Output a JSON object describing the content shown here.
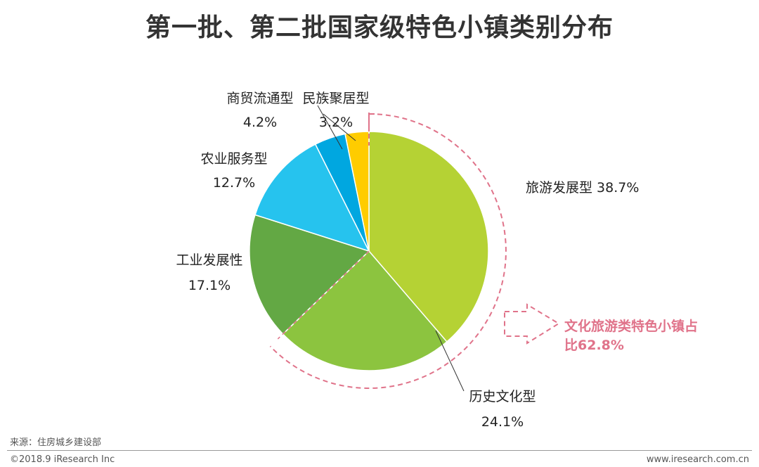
{
  "title": "第一批、第二批国家级特色小镇类别分布",
  "chart_data": {
    "type": "pie",
    "title": "第一批、第二批国家级特色小镇类别分布",
    "unit": "%",
    "slices": [
      {
        "name": "旅游发展型",
        "value": 38.7,
        "label": "38.7%",
        "color": "#b5d234"
      },
      {
        "name": "历史文化型",
        "value": 24.1,
        "label": "24.1%",
        "color": "#8cc43f"
      },
      {
        "name": "工业发展性",
        "value": 17.1,
        "label": "17.1%",
        "color": "#63a844"
      },
      {
        "name": "农业服务型",
        "value": 12.7,
        "label": "12.7%",
        "color": "#26c3ee"
      },
      {
        "name": "商贸流通型",
        "value": 4.2,
        "label": "4.2%",
        "color": "#00a7e0"
      },
      {
        "name": "民族聚居型",
        "value": 3.2,
        "label": "3.2%",
        "color": "#ffcc00"
      }
    ],
    "annotation": {
      "line1": "文化旅游类特色小镇占",
      "line2": "比62.8%",
      "color": "#e0738a"
    }
  },
  "footer": {
    "source": "来源：住房城乡建设部",
    "copyright": "©2018.9 iResearch Inc",
    "website": "www.iresearch.com.cn"
  }
}
